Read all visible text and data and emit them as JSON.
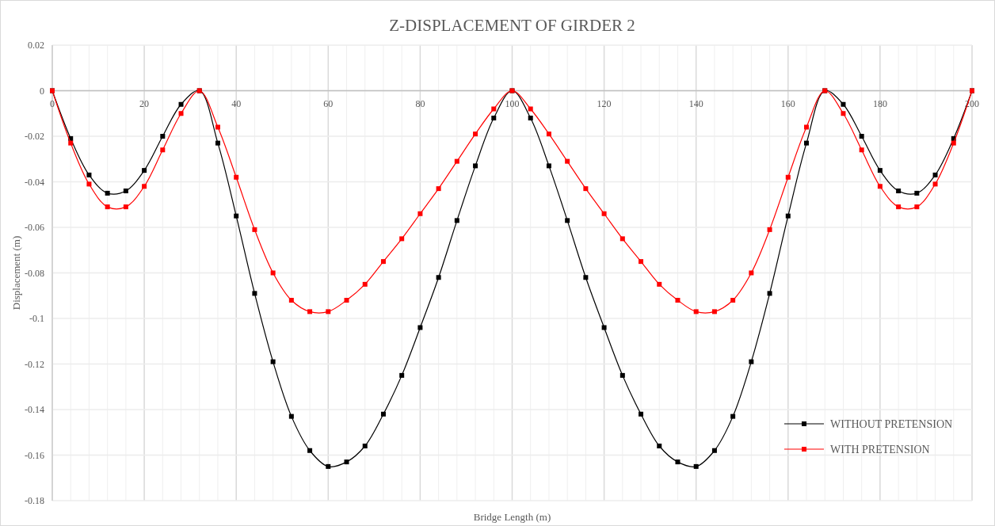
{
  "chart_data": {
    "type": "line",
    "title": "Z-DISPLACEMENT OF GIRDER 2",
    "xlabel": "Bridge Length (m)",
    "ylabel": "Displacement (m)",
    "x": [
      0,
      4,
      8,
      12,
      16,
      20,
      24,
      28,
      32,
      36,
      40,
      44,
      48,
      52,
      56,
      60,
      64,
      68,
      72,
      76,
      80,
      84,
      88,
      92,
      96,
      100,
      104,
      108,
      112,
      116,
      120,
      124,
      128,
      132,
      136,
      140,
      144,
      148,
      152,
      156,
      160,
      164,
      168,
      172,
      176,
      180,
      184,
      188,
      192,
      196,
      200
    ],
    "series": [
      {
        "name": "WITHOUT PRETENSION",
        "color": "#000000",
        "values": [
          0,
          -0.021,
          -0.037,
          -0.045,
          -0.044,
          -0.035,
          -0.02,
          -0.006,
          0,
          -0.023,
          -0.055,
          -0.089,
          -0.119,
          -0.143,
          -0.158,
          -0.165,
          -0.163,
          -0.156,
          -0.142,
          -0.125,
          -0.104,
          -0.082,
          -0.057,
          -0.033,
          -0.012,
          0,
          -0.012,
          -0.033,
          -0.057,
          -0.082,
          -0.104,
          -0.125,
          -0.142,
          -0.156,
          -0.163,
          -0.165,
          -0.158,
          -0.143,
          -0.119,
          -0.089,
          -0.055,
          -0.023,
          0,
          -0.006,
          -0.02,
          -0.035,
          -0.044,
          -0.045,
          -0.037,
          -0.021,
          0
        ]
      },
      {
        "name": "WITH PRETENSION",
        "color": "#ff0000",
        "values": [
          0,
          -0.023,
          -0.041,
          -0.051,
          -0.051,
          -0.042,
          -0.026,
          -0.01,
          0,
          -0.016,
          -0.038,
          -0.061,
          -0.08,
          -0.092,
          -0.097,
          -0.097,
          -0.092,
          -0.085,
          -0.075,
          -0.065,
          -0.054,
          -0.043,
          -0.031,
          -0.019,
          -0.008,
          0,
          -0.008,
          -0.019,
          -0.031,
          -0.043,
          -0.054,
          -0.065,
          -0.075,
          -0.085,
          -0.092,
          -0.097,
          -0.097,
          -0.092,
          -0.08,
          -0.061,
          -0.038,
          -0.016,
          0,
          -0.01,
          -0.026,
          -0.042,
          -0.051,
          -0.051,
          -0.041,
          -0.023,
          0
        ]
      }
    ],
    "xlim": [
      0,
      200
    ],
    "xticks": [
      0,
      {
        "value": 4,
        "label": null
      },
      {
        "value": 8,
        "label": null
      },
      {
        "value": 12,
        "label": null
      },
      {
        "value": 16,
        "label": null
      },
      20,
      {
        "value": 24,
        "label": null
      },
      {
        "value": 28,
        "label": null
      },
      {
        "value": 32,
        "label": null
      },
      {
        "value": 36,
        "label": null
      },
      40,
      {
        "value": 44,
        "label": null
      },
      {
        "value": 48,
        "label": null
      },
      {
        "value": 52,
        "label": null
      },
      {
        "value": 56,
        "label": null
      },
      60,
      {
        "value": 64,
        "label": null
      },
      {
        "value": 68,
        "label": null
      },
      {
        "value": 72,
        "label": null
      },
      {
        "value": 76,
        "label": null
      },
      80,
      {
        "value": 84,
        "label": null
      },
      {
        "value": 88,
        "label": null
      },
      {
        "value": 92,
        "label": null
      },
      {
        "value": 96,
        "label": null
      },
      100,
      {
        "value": 104,
        "label": null
      },
      {
        "value": 108,
        "label": null
      },
      {
        "value": 112,
        "label": null
      },
      {
        "value": 116,
        "label": null
      },
      120,
      {
        "value": 124,
        "label": null
      },
      {
        "value": 128,
        "label": null
      },
      {
        "value": 132,
        "label": null
      },
      {
        "value": 136,
        "label": null
      },
      140,
      {
        "value": 144,
        "label": null
      },
      {
        "value": 148,
        "label": null
      },
      {
        "value": 152,
        "label": null
      },
      {
        "value": 156,
        "label": null
      },
      160,
      {
        "value": 164,
        "label": null
      },
      {
        "value": 168,
        "label": null
      },
      {
        "value": 172,
        "label": null
      },
      {
        "value": 176,
        "label": null
      },
      180,
      {
        "value": 184,
        "label": null
      },
      {
        "value": 188,
        "label": null
      },
      {
        "value": 192,
        "label": null
      },
      {
        "value": 196,
        "label": null
      },
      200
    ],
    "ylim": [
      -0.18,
      0.02
    ],
    "yticks": [
      0.02,
      0,
      -0.02,
      -0.04,
      -0.06,
      -0.08,
      -0.1,
      -0.12,
      -0.14,
      -0.16,
      -0.18
    ],
    "grid": true,
    "legend": "bottom right",
    "marker": "square",
    "line_style": "solid"
  }
}
